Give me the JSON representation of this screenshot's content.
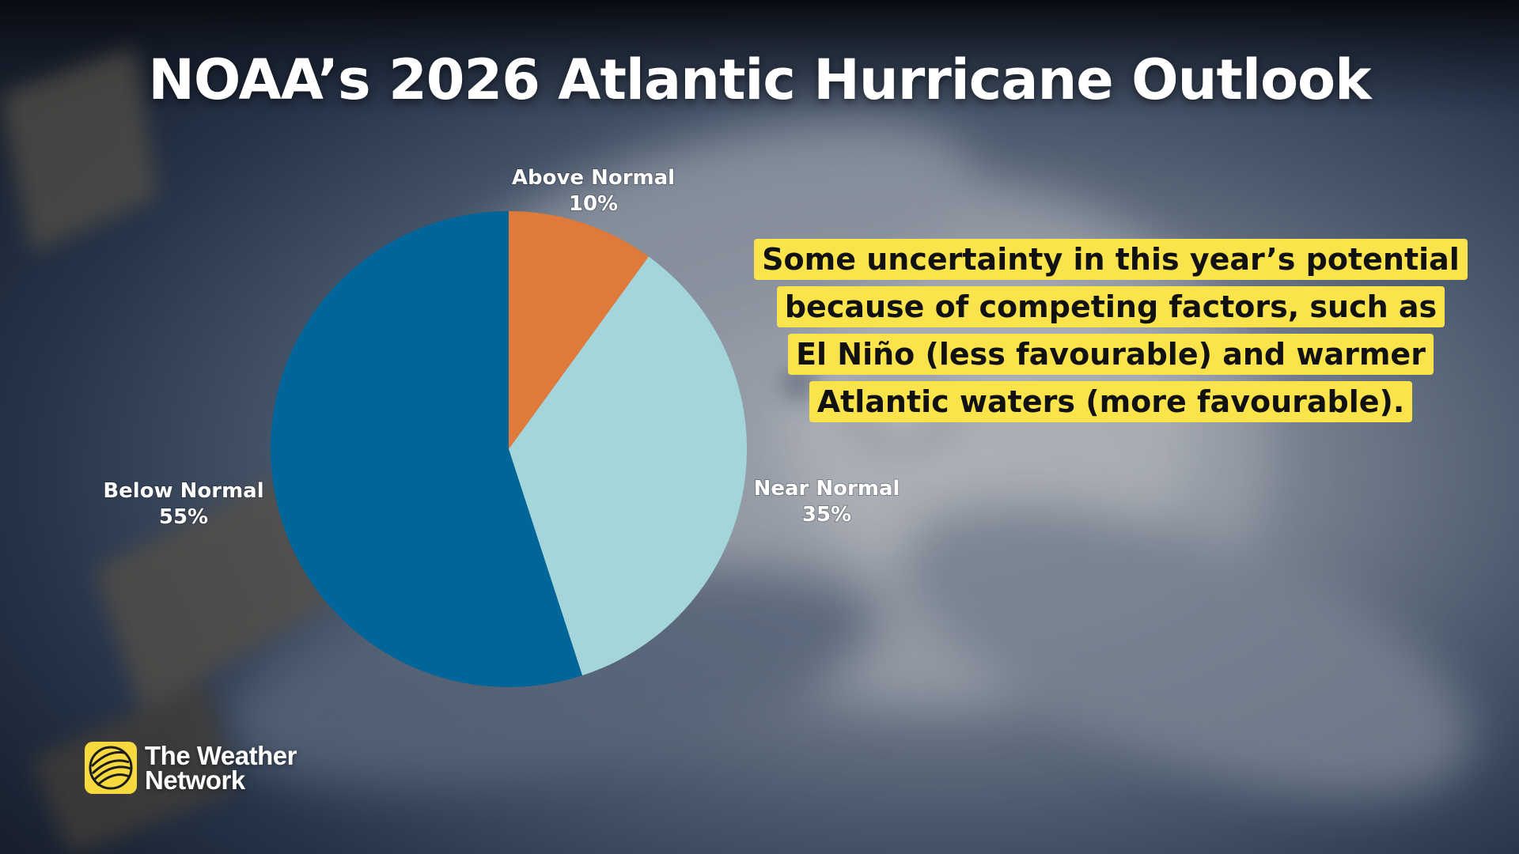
{
  "title": "NOAA’s 2026 Atlantic Hurricane Outlook",
  "callout": {
    "lines": [
      "Some uncertainty in this year’s potential",
      "because of competing factors, such as",
      "El Niño (less favourable) and warmer",
      "Atlantic waters (more favourable)."
    ],
    "background_color": "#fbe34c"
  },
  "chart_data": {
    "type": "pie",
    "title": "",
    "slices": [
      {
        "label": "Above Normal",
        "value": 10,
        "value_label": "10%",
        "color": "#e07a3a"
      },
      {
        "label": "Near Normal",
        "value": 35,
        "value_label": "35%",
        "color": "#a4d5db"
      },
      {
        "label": "Below Normal",
        "value": 55,
        "value_label": "55%",
        "color": "#006699"
      }
    ],
    "start_angle": "12 o'clock",
    "direction": "clockwise",
    "legend": "none"
  },
  "logo": {
    "line1": "The Weather",
    "line2": "Network",
    "icon": "globe-logo-icon",
    "color": "#f6d93e"
  }
}
